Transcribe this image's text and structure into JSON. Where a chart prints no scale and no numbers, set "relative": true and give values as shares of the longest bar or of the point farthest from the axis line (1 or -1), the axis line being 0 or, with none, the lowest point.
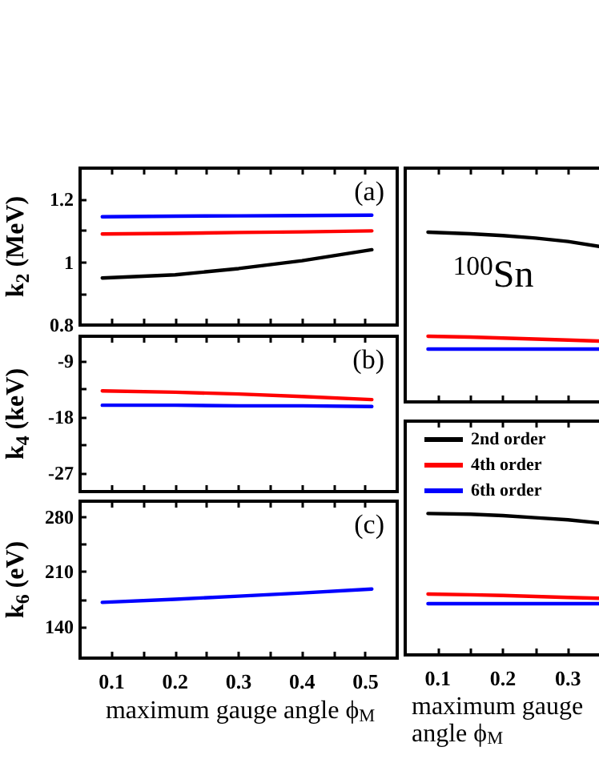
{
  "chart_data": [
    {
      "type": "line",
      "ylabel": "k$_{2}$ (MeV)",
      "annotations": [
        "(a)"
      ],
      "x": [
        0.085,
        0.2,
        0.3,
        0.4,
        0.51
      ],
      "xlim": [
        0.05,
        0.55
      ],
      "xticks": [
        0.1,
        {
          "value": 0.15,
          "label": null
        },
        0.2,
        {
          "value": 0.25,
          "label": null
        },
        0.3,
        {
          "value": 0.35,
          "label": null
        },
        0.4,
        {
          "value": 0.45,
          "label": null
        },
        0.5
      ],
      "ylim": [
        0.8,
        1.3
      ],
      "yticks": [
        0.8,
        {
          "value": 0.9,
          "label": null
        },
        1.0,
        {
          "value": 1.1,
          "label": null
        },
        1.2
      ],
      "tick_labels": "y",
      "series": [
        {
          "color": "#000000",
          "values": [
            0.95,
            0.96,
            0.98,
            1.005,
            1.04
          ]
        },
        {
          "color": "#ff0000",
          "values": [
            1.09,
            1.092,
            1.095,
            1.097,
            1.1
          ]
        },
        {
          "color": "#0000ff",
          "values": [
            1.145,
            1.147,
            1.148,
            1.149,
            1.15
          ]
        }
      ]
    },
    {
      "type": "line",
      "ylabel": "k$_{4}$ (keV)",
      "annotations": [
        "(b)"
      ],
      "x": [
        0.085,
        0.2,
        0.3,
        0.4,
        0.51
      ],
      "xlim": [
        0.05,
        0.55
      ],
      "xticks": [
        0.1,
        {
          "value": 0.15,
          "label": null
        },
        0.2,
        {
          "value": 0.25,
          "label": null
        },
        0.3,
        {
          "value": 0.35,
          "label": null
        },
        0.4,
        {
          "value": 0.45,
          "label": null
        },
        0.5
      ],
      "ylim": [
        -30,
        -5
      ],
      "yticks": [
        -27,
        {
          "value": -22.5,
          "label": null
        },
        -18,
        {
          "value": -13.5,
          "label": null
        },
        -9
      ],
      "tick_labels": "y",
      "series": [
        {
          "color": "#ff0000",
          "values": [
            -13.8,
            -14.0,
            -14.3,
            -14.7,
            -15.2
          ]
        },
        {
          "color": "#0000ff",
          "values": [
            -16.1,
            -16.1,
            -16.2,
            -16.2,
            -16.3
          ]
        }
      ]
    },
    {
      "type": "line",
      "ylabel": "k$_{6}$ (eV)",
      "xlabel": "maximum gauge angle ϕ$_{M}$",
      "annotations": [
        "(c)"
      ],
      "x": [
        0.085,
        0.2,
        0.3,
        0.4,
        0.51
      ],
      "xlim": [
        0.05,
        0.55
      ],
      "xticks": [
        0.1,
        {
          "value": 0.15,
          "label": null
        },
        0.2,
        {
          "value": 0.25,
          "label": null
        },
        0.3,
        {
          "value": 0.35,
          "label": null
        },
        0.4,
        {
          "value": 0.45,
          "label": null
        },
        0.5
      ],
      "ylim": [
        100,
        300
      ],
      "yticks": [
        140,
        {
          "value": 175,
          "label": null
        },
        210,
        {
          "value": 245,
          "label": null
        },
        280
      ],
      "series": [
        {
          "color": "#0000ff",
          "values": [
            171,
            175,
            179,
            183,
            188
          ]
        }
      ]
    },
    {
      "type": "line",
      "relative": true,
      "annotations": [
        "$^{100}$Sn"
      ],
      "x": [
        0.085,
        0.15,
        0.2,
        0.25,
        0.3,
        0.35
      ],
      "xlim": [
        0.05,
        0.35
      ],
      "xticks": [
        0.1,
        {
          "value": 0.15,
          "label": null
        },
        0.2,
        {
          "value": 0.25,
          "label": null
        },
        0.3
      ],
      "tick_labels": false,
      "series": [
        {
          "color": "#000000",
          "values": [
            1,
            0.99,
            0.98,
            0.965,
            0.945,
            0.915
          ]
        },
        {
          "color": "#ff0000",
          "values": [
            0.387,
            0.382,
            0.376,
            0.37,
            0.364,
            0.358
          ]
        },
        {
          "color": "#0000ff",
          "values": [
            0.311,
            0.311,
            0.311,
            0.311,
            0.311,
            0.311
          ]
        }
      ]
    },
    {
      "type": "line",
      "relative": true,
      "xlabel": "maximum gauge angle ϕ$_{M}$",
      "x": [
        0.085,
        0.15,
        0.2,
        0.25,
        0.3,
        0.35
      ],
      "xlim": [
        0.05,
        0.35
      ],
      "xticks": [
        0.1,
        {
          "value": 0.15,
          "label": null
        },
        0.2,
        {
          "value": 0.25,
          "label": null
        },
        0.3
      ],
      "tick_labels": "x",
      "legend": "top left",
      "series": [
        {
          "name": "2nd order",
          "color": "#000000",
          "values": [
            1,
            0.995,
            0.985,
            0.97,
            0.955,
            0.932
          ]
        },
        {
          "name": "4th order",
          "color": "#ff0000",
          "values": [
            0.43,
            0.425,
            0.42,
            0.413,
            0.406,
            0.4
          ]
        },
        {
          "name": "6th order",
          "color": "#0000ff",
          "values": [
            0.362,
            0.362,
            0.362,
            0.362,
            0.362,
            0.362
          ]
        }
      ]
    }
  ]
}
